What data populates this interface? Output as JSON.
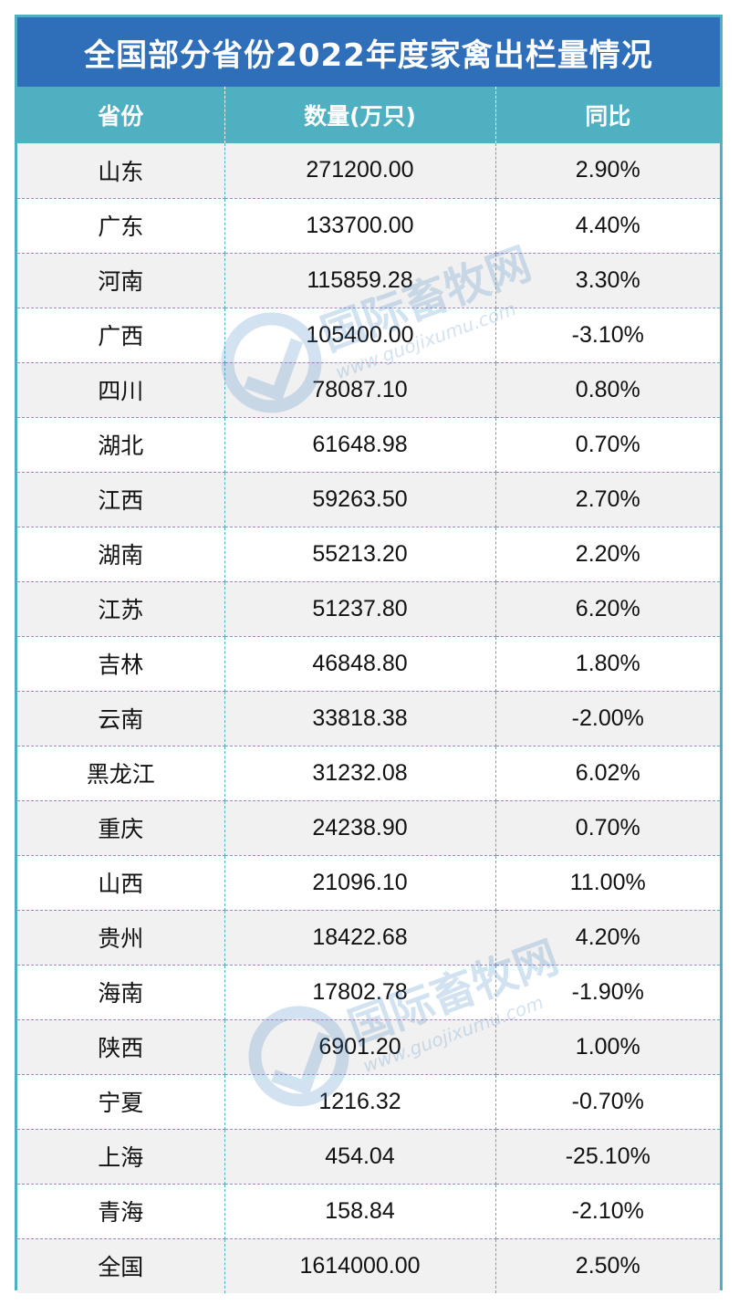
{
  "title": "全国部分省份2022年度家禽出栏量情况",
  "headers": {
    "province": "省份",
    "quantity": "数量(万只)",
    "yoy": "同比"
  },
  "rows": [
    {
      "province": "山东",
      "quantity": "271200.00",
      "yoy": "2.90%"
    },
    {
      "province": "广东",
      "quantity": "133700.00",
      "yoy": "4.40%"
    },
    {
      "province": "河南",
      "quantity": "115859.28",
      "yoy": "3.30%"
    },
    {
      "province": "广西",
      "quantity": "105400.00",
      "yoy": "-3.10%"
    },
    {
      "province": "四川",
      "quantity": "78087.10",
      "yoy": "0.80%"
    },
    {
      "province": "湖北",
      "quantity": "61648.98",
      "yoy": "0.70%"
    },
    {
      "province": "江西",
      "quantity": "59263.50",
      "yoy": "2.70%"
    },
    {
      "province": "湖南",
      "quantity": "55213.20",
      "yoy": "2.20%"
    },
    {
      "province": "江苏",
      "quantity": "51237.80",
      "yoy": "6.20%"
    },
    {
      "province": "吉林",
      "quantity": "46848.80",
      "yoy": "1.80%"
    },
    {
      "province": "云南",
      "quantity": "33818.38",
      "yoy": "-2.00%"
    },
    {
      "province": "黑龙江",
      "quantity": "31232.08",
      "yoy": "6.02%"
    },
    {
      "province": "重庆",
      "quantity": "24238.90",
      "yoy": "0.70%"
    },
    {
      "province": "山西",
      "quantity": "21096.10",
      "yoy": "11.00%"
    },
    {
      "province": "贵州",
      "quantity": "18422.68",
      "yoy": "4.20%"
    },
    {
      "province": "海南",
      "quantity": "17802.78",
      "yoy": "-1.90%"
    },
    {
      "province": "陕西",
      "quantity": "6901.20",
      "yoy": "1.00%"
    },
    {
      "province": "宁夏",
      "quantity": "1216.32",
      "yoy": "-0.70%"
    },
    {
      "province": "上海",
      "quantity": "454.04",
      "yoy": "-25.10%"
    },
    {
      "province": "青海",
      "quantity": "158.84",
      "yoy": "-2.10%"
    },
    {
      "province": "全国",
      "quantity": "1614000.00",
      "yoy": "2.50%"
    }
  ],
  "watermark": {
    "name": "国际畜牧网",
    "url": "www.guojixumu.com",
    "logo_icon": "check-circle-logo-icon"
  },
  "colors": {
    "title_bg": "#2f6eb8",
    "header_bg": "#4eb0c1",
    "stripe": "#f1f1f1"
  }
}
